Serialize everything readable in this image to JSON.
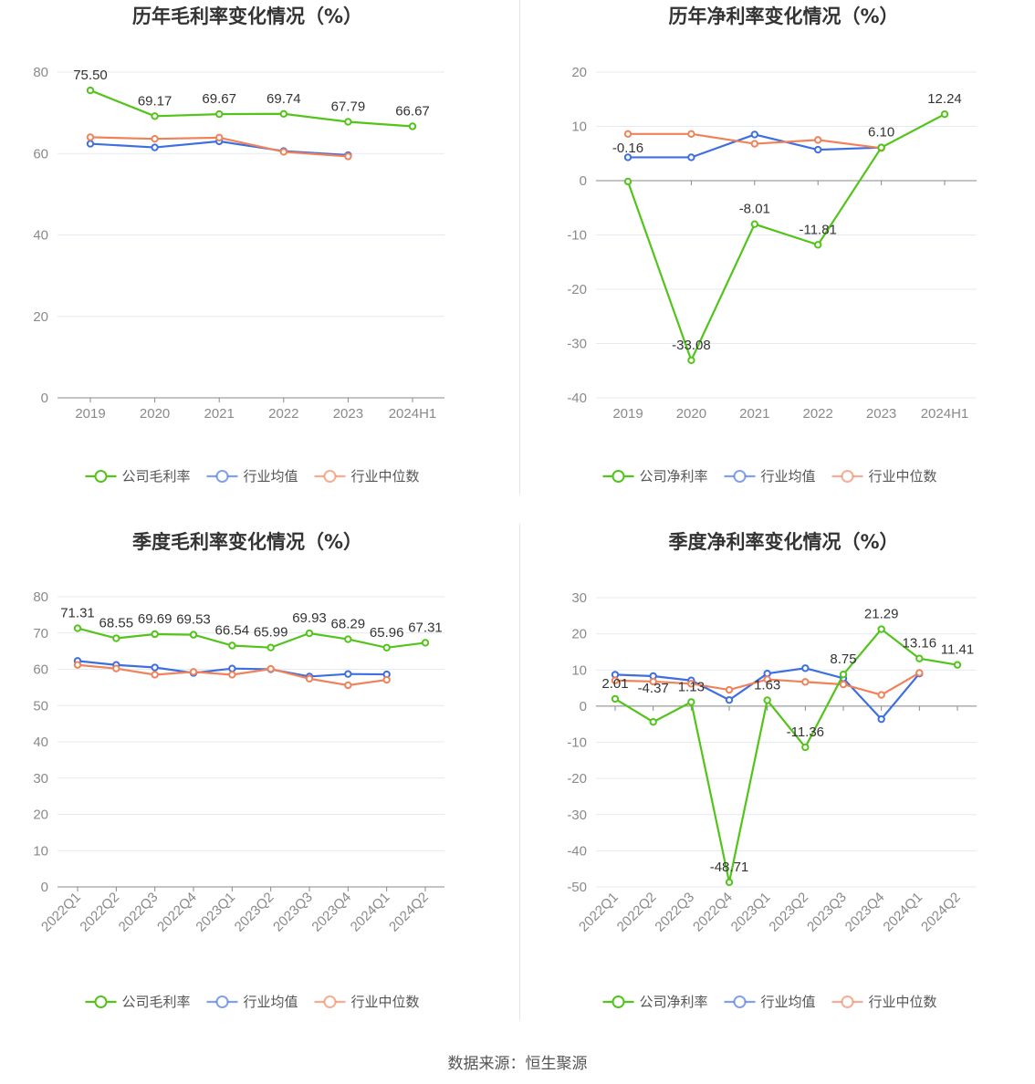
{
  "source": "数据来源：恒生聚源",
  "colors": {
    "company": "#52c41a",
    "industry_avg": "#3e6fe0",
    "industry_median": "#f0825a",
    "grid": "#e6e9f2",
    "axis": "#888888"
  },
  "chart_data": [
    {
      "type": "line",
      "title": "历年毛利率变化情况（%）",
      "categories": [
        "2019",
        "2020",
        "2021",
        "2022",
        "2023",
        "2024H1"
      ],
      "ylim": [
        0,
        80
      ],
      "yticks": [
        0,
        20,
        40,
        60,
        80
      ],
      "rotate_x": false,
      "series": [
        {
          "name": "公司毛利率",
          "key": "company",
          "values": [
            75.5,
            69.17,
            69.67,
            69.74,
            67.79,
            66.67
          ],
          "labels": [
            "75.50",
            "69.17",
            "69.67",
            "69.74",
            "67.79",
            "66.67"
          ]
        },
        {
          "name": "行业均值",
          "key": "industry_avg",
          "values": [
            62.4,
            61.5,
            63.0,
            60.6,
            59.6,
            null
          ]
        },
        {
          "name": "行业中位数",
          "key": "industry_median",
          "values": [
            64.0,
            63.6,
            63.9,
            60.4,
            59.3,
            null
          ]
        }
      ],
      "legend": "bottom-center"
    },
    {
      "type": "line",
      "title": "历年净利率变化情况（%）",
      "categories": [
        "2019",
        "2020",
        "2021",
        "2022",
        "2023",
        "2024H1"
      ],
      "ylim": [
        -40,
        20
      ],
      "yticks": [
        -40,
        -30,
        -20,
        -10,
        0,
        10,
        20
      ],
      "rotate_x": false,
      "series": [
        {
          "name": "公司净利率",
          "key": "company",
          "values": [
            -0.16,
            -33.08,
            -8.01,
            -11.81,
            6.1,
            12.24
          ],
          "labels": [
            "-0.16",
            "-33.08",
            "-8.01",
            "-11.81",
            "6.10",
            "12.24"
          ]
        },
        {
          "name": "行业均值",
          "key": "industry_avg",
          "values": [
            4.3,
            4.3,
            8.5,
            5.7,
            6.1,
            null
          ]
        },
        {
          "name": "行业中位数",
          "key": "industry_median",
          "values": [
            8.6,
            8.6,
            6.8,
            7.5,
            6.0,
            null
          ]
        }
      ],
      "legend": "bottom-center"
    },
    {
      "type": "line",
      "title": "季度毛利率变化情况（%）",
      "categories": [
        "2022Q1",
        "2022Q2",
        "2022Q3",
        "2022Q4",
        "2023Q1",
        "2023Q2",
        "2023Q3",
        "2023Q4",
        "2024Q1",
        "2024Q2"
      ],
      "ylim": [
        0,
        80
      ],
      "yticks": [
        0,
        10,
        20,
        30,
        40,
        50,
        60,
        70,
        80
      ],
      "rotate_x": true,
      "series": [
        {
          "name": "公司毛利率",
          "key": "company",
          "values": [
            71.31,
            68.55,
            69.69,
            69.53,
            66.54,
            65.99,
            69.93,
            68.29,
            65.96,
            67.31
          ],
          "labels": [
            "71.31",
            "68.55",
            "69.69",
            "69.53",
            "66.54",
            "65.99",
            "69.93",
            "68.29",
            "65.96",
            "67.31"
          ]
        },
        {
          "name": "行业均值",
          "key": "industry_avg",
          "values": [
            62.3,
            61.2,
            60.5,
            59.0,
            60.2,
            60.0,
            58.0,
            58.7,
            58.6,
            null
          ]
        },
        {
          "name": "行业中位数",
          "key": "industry_median",
          "values": [
            61.2,
            60.2,
            58.5,
            59.3,
            58.5,
            60.1,
            57.4,
            55.6,
            57.1,
            null
          ]
        }
      ],
      "legend": "bottom-center"
    },
    {
      "type": "line",
      "title": "季度净利率变化情况（%）",
      "categories": [
        "2022Q1",
        "2022Q2",
        "2022Q3",
        "2022Q4",
        "2023Q1",
        "2023Q2",
        "2023Q3",
        "2023Q4",
        "2024Q1",
        "2024Q2"
      ],
      "ylim": [
        -50,
        30
      ],
      "yticks": [
        -50,
        -40,
        -30,
        -20,
        -10,
        0,
        10,
        20,
        30
      ],
      "rotate_x": true,
      "series": [
        {
          "name": "公司净利率",
          "key": "company",
          "values": [
            2.01,
            -4.37,
            1.13,
            -48.71,
            1.63,
            -11.36,
            8.75,
            21.29,
            13.16,
            11.41
          ],
          "labels": [
            "2.01",
            "-4.37",
            "1.13",
            "-48.71",
            "1.63",
            "-11.36",
            "8.75",
            "21.29",
            "13.16",
            "11.41"
          ]
        },
        {
          "name": "行业均值",
          "key": "industry_avg",
          "values": [
            8.7,
            8.3,
            7.1,
            1.7,
            9.0,
            10.5,
            7.7,
            -3.6,
            9.0,
            null
          ]
        },
        {
          "name": "行业中位数",
          "key": "industry_median",
          "values": [
            7.1,
            6.8,
            6.2,
            4.5,
            7.4,
            6.7,
            6.0,
            3.1,
            9.2,
            null
          ]
        }
      ],
      "legend": "bottom-center"
    }
  ]
}
